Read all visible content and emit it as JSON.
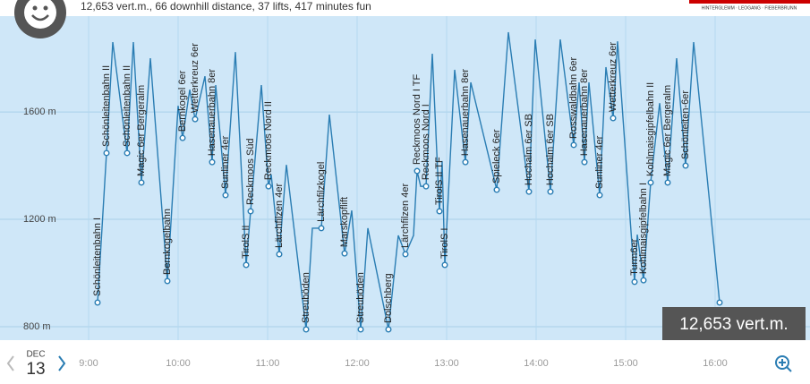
{
  "header": {
    "summary": "12,653 vert.m., 66 downhill distance, 37 lifts, 417 minutes fun",
    "logo": "HINTERGLEMM · LEOGANG · FIEBERBRUNN",
    "badge": "12,653 vert.m.",
    "month": "DEC",
    "day": "13"
  },
  "chart_data": {
    "type": "line",
    "x": [
      9.1,
      9.2,
      9.27,
      9.43,
      9.5,
      9.59,
      9.69,
      9.88,
      10.0,
      10.05,
      10.13,
      10.19,
      10.3,
      10.38,
      10.42,
      10.53,
      10.64,
      10.76,
      10.81,
      10.93,
      11.01,
      11.04,
      11.13,
      11.21,
      11.43,
      11.5,
      11.6,
      11.69,
      11.86,
      11.94,
      12.04,
      12.12,
      12.35,
      12.46,
      12.54,
      12.63,
      12.67,
      12.71,
      12.77,
      12.84,
      12.92,
      12.95,
      12.98,
      13.09,
      13.21,
      13.27,
      13.56,
      13.69,
      13.92,
      13.99,
      14.16,
      14.27,
      14.42,
      14.48,
      14.54,
      14.59,
      14.71,
      14.78,
      14.86,
      14.91,
      15.1,
      15.13,
      15.2,
      15.28,
      15.38,
      15.47,
      15.57,
      15.67,
      15.76,
      16.05
    ],
    "series": [
      {
        "color": "#2a7db3",
        "values": [
          890,
          1447,
          1860,
          1447,
          1860,
          1337,
          1800,
          970,
          1623,
          1503,
          1683,
          1573,
          1733,
          1413,
          1700,
          1290,
          1823,
          1030,
          1230,
          1700,
          1323,
          1367,
          1070,
          1403,
          790,
          1167,
          1167,
          1590,
          1073,
          1233,
          790,
          1167,
          790,
          1140,
          1070,
          1140,
          1380,
          1323,
          1323,
          1817,
          1230,
          1417,
          1030,
          1757,
          1413,
          1710,
          1310,
          1897,
          1303,
          1870,
          1303,
          1870,
          1477,
          1710,
          1413,
          1710,
          1290,
          1767,
          1577,
          1863,
          967,
          1143,
          973,
          1337,
          1633,
          1337,
          1800,
          1400,
          1860,
          890
        ],
        "labels": [
          "Schönleitenbahn I",
          "Schönleitenbahn II",
          null,
          "Schönleitenbahn II",
          null,
          "Magic 6er Bergeralm",
          null,
          "Bernkogelbahn",
          null,
          "Bernkogel 6er",
          null,
          "Wetterkreuz 6er",
          null,
          "Hasenauerbahn 8er",
          null,
          "Sunliner 4er",
          null,
          "TirolS II",
          "Reckmoos Süd",
          null,
          "Reckmoos Nord II",
          null,
          "Lärchfilzen 4er",
          null,
          "Streuböden",
          null,
          "Lärchfilzkogel",
          null,
          "Marskopflift",
          null,
          "Streuböden",
          null,
          "Dolschberg",
          null,
          "Lärchfilzen 4er",
          null,
          "Reckmoos Nord I TF",
          null,
          "Reckmoos Nord I",
          null,
          "TirolS II TF",
          null,
          "TirolS I",
          null,
          "Hasenauerbahn 8er",
          null,
          "Spieleck 6er",
          null,
          "Hochalm 6er SB",
          null,
          "Hochalm 6er SB",
          null,
          "Rosswaldbahn 6er",
          null,
          "Hasenauerbahn 8er",
          null,
          "Sunliner 4er",
          null,
          "Wetterkreuz 6er",
          null,
          "Turm6er",
          null,
          "Kohlmaisgipfelbahn I",
          "Kohlmaisgipfelbahn II",
          null,
          "Magic 6er Bergeralm",
          null,
          "Schönleiten-6er",
          null,
          null
        ]
      }
    ],
    "xlim": [
      8.01,
      17.06
    ],
    "xticks": [
      {
        "value": 9,
        "label": "9:00"
      },
      {
        "value": 10,
        "label": "10:00"
      },
      {
        "value": 11,
        "label": "11:00"
      },
      {
        "value": 12,
        "label": "12:00"
      },
      {
        "value": 13,
        "label": "13:00"
      },
      {
        "value": 14,
        "label": "14:00"
      },
      {
        "value": 15,
        "label": "15:00"
      },
      {
        "value": 16,
        "label": "16:00"
      }
    ],
    "ylim": [
      750,
      1957
    ],
    "yticks": [
      {
        "value": 800,
        "label": "800 m"
      },
      {
        "value": 1200,
        "label": "1200 m"
      },
      {
        "value": 1600,
        "label": "1600 m"
      }
    ],
    "grid": true
  }
}
